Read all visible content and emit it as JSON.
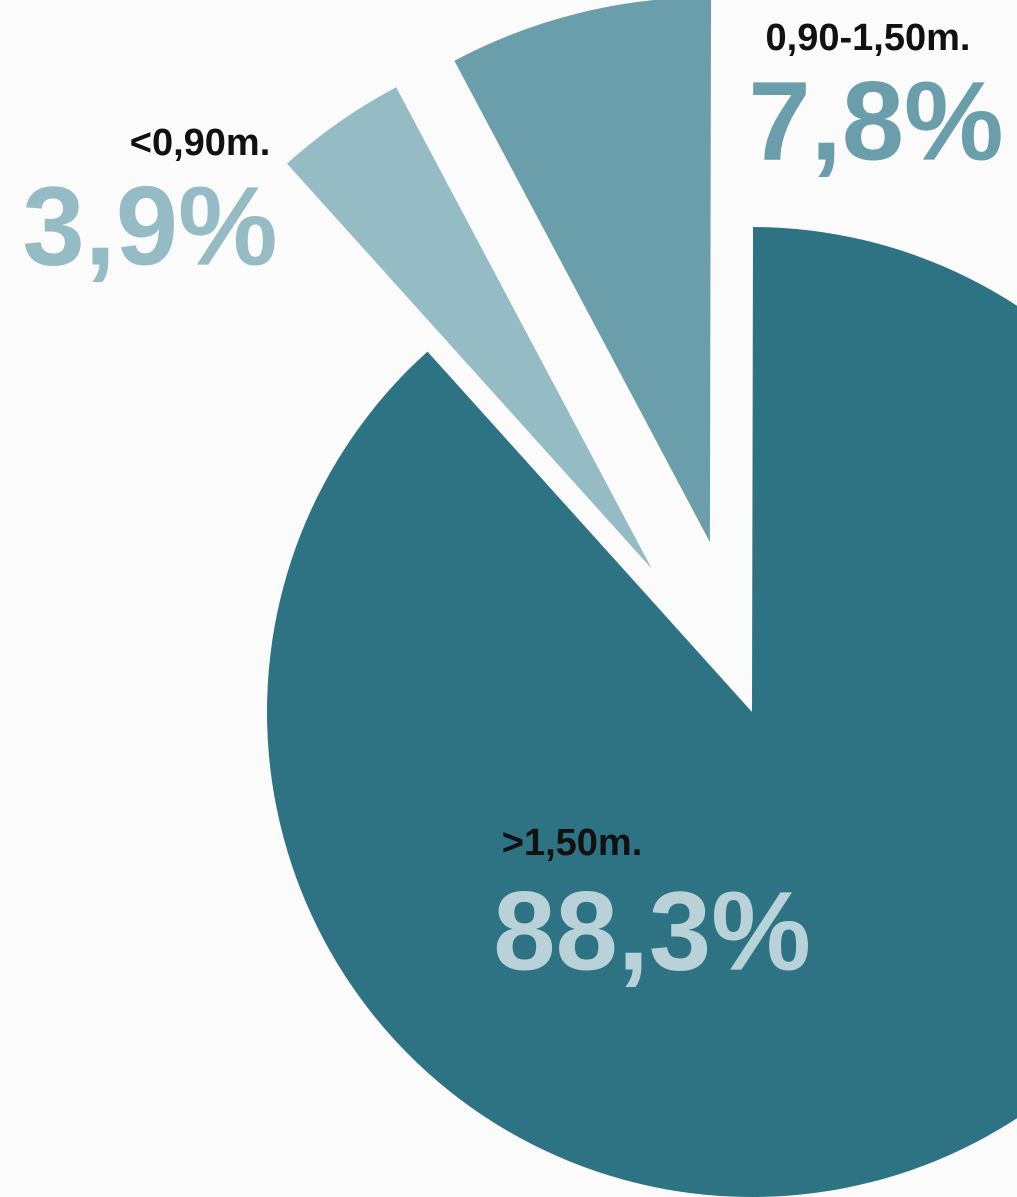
{
  "chart_data": {
    "type": "pie",
    "categories": [
      "<0,90m.",
      "0,90-1,50m.",
      ">1,50m."
    ],
    "values": [
      3.9,
      7.8,
      88.3
    ],
    "value_labels": [
      "3,9%",
      "7,8%",
      "88,3%"
    ],
    "colors": [
      "#95bcc4",
      "#6a9eab",
      "#2e7384"
    ],
    "value_label_colors": [
      "#95bcc4",
      "#6a9eab",
      "#b9d2d8"
    ],
    "exploded": [
      true,
      true,
      false
    ]
  }
}
